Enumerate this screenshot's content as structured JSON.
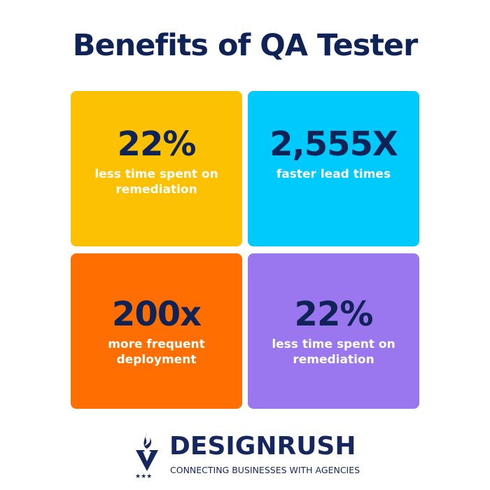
{
  "title": "Benefits of QA Tester",
  "cards": [
    {
      "value": "22%",
      "label": "less time spent on\nremediation",
      "color": "#fbc102"
    },
    {
      "value": "2,555X",
      "label": "faster lead times",
      "color": "#00c9fb"
    },
    {
      "value": "200x",
      "label": "more frequent\ndeployment",
      "color": "#ff6e00"
    },
    {
      "value": "22%",
      "label": "less time spent on\nremediation",
      "color": "#9a77ee"
    }
  ],
  "logo": {
    "brand": "DESIGNRUSH",
    "tagline": "CONNECTING BUSINESSES WITH AGENCIES",
    "color": "#15275e"
  }
}
